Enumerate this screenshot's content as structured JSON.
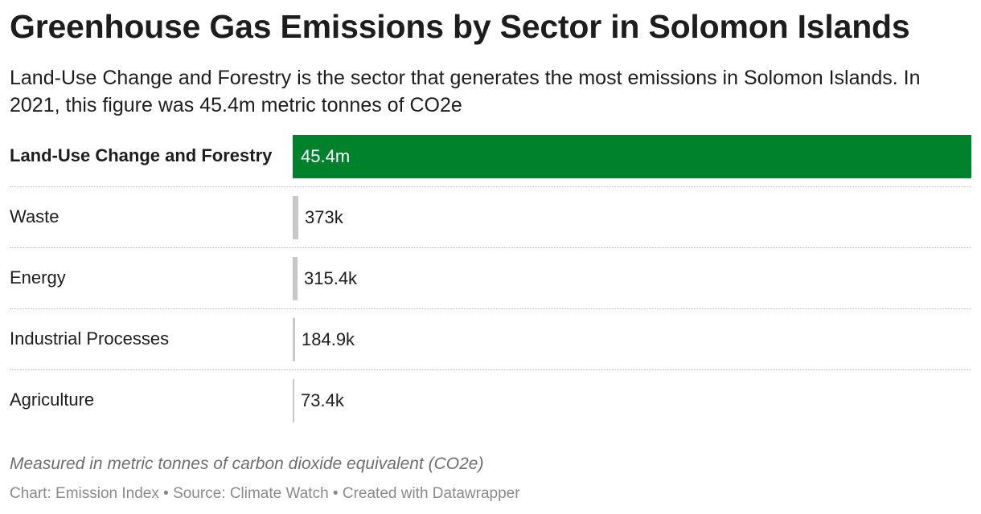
{
  "header": {
    "title": "Greenhouse Gas Emissions by Sector in Solomon Islands",
    "subtitle": "Land-Use Change and Forestry is the sector that generates the most emissions in Solomon Islands. In 2021, this figure was 45.4m metric tonnes of CO2e"
  },
  "chart_data": {
    "type": "bar",
    "orientation": "horizontal",
    "categories": [
      "Land-Use Change and Forestry",
      "Waste",
      "Energy",
      "Industrial Processes",
      "Agriculture"
    ],
    "values": [
      45400000,
      373000,
      315400,
      184900,
      73400
    ],
    "value_labels": [
      "45.4m",
      "373k",
      "315.4k",
      "184.9k",
      "73.4k"
    ],
    "highlight_index": 0,
    "colors": {
      "highlight": "#00822d",
      "default": "#c8c8c8"
    },
    "xlim": [
      0,
      45400000
    ]
  },
  "notes": {
    "measure": "Measured in metric tonnes of carbon dioxide equivalent (CO2e)",
    "credit": "Chart: Emission Index • Source: Climate Watch • Created with Datawrapper"
  }
}
